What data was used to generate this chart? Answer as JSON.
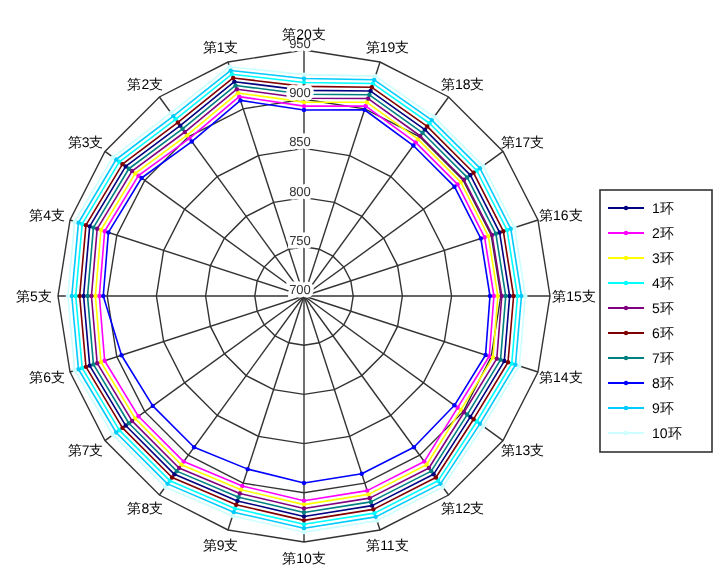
{
  "chart_data": {
    "type": "radar",
    "categories": [
      "第20支",
      "第19支",
      "第18支",
      "第17支",
      "第16支",
      "第15支",
      "第14支",
      "第13支",
      "第12支",
      "第11支",
      "第10支",
      "第9支",
      "第8支",
      "第7支",
      "第6支",
      "第5支",
      "第4支",
      "第3支",
      "第2支",
      "第1支"
    ],
    "ylim": [
      700,
      950
    ],
    "yticks": [
      700,
      750,
      800,
      850,
      900,
      950
    ],
    "grid": true,
    "legend": "right",
    "marker": "circle",
    "series": [
      {
        "name": "1环",
        "color": "#000080",
        "values": [
          909,
          919,
          909,
          909,
          909,
          909,
          914,
          909,
          924,
          924,
          924,
          919,
          924,
          924,
          929,
          924,
          929,
          924,
          914,
          929
        ]
      },
      {
        "name": "2环",
        "color": "#ff00ff",
        "values": [
          893,
          903,
          893,
          893,
          893,
          893,
          898,
          893,
          908,
          908,
          908,
          903,
          908,
          908,
          913,
          908,
          913,
          908,
          898,
          913
        ]
      },
      {
        "name": "3环",
        "color": "#ffff00",
        "values": [
          897,
          907,
          897,
          897,
          897,
          897,
          902,
          897,
          912,
          912,
          912,
          907,
          912,
          912,
          917,
          912,
          917,
          912,
          902,
          917
        ]
      },
      {
        "name": "4环",
        "color": "#00ffff",
        "values": [
          917,
          927,
          917,
          917,
          917,
          917,
          922,
          917,
          932,
          932,
          932,
          927,
          932,
          932,
          937,
          932,
          937,
          932,
          922,
          937
        ]
      },
      {
        "name": "5环",
        "color": "#800080",
        "values": [
          901,
          911,
          901,
          901,
          901,
          901,
          906,
          901,
          916,
          916,
          916,
          911,
          916,
          916,
          921,
          916,
          921,
          916,
          906,
          921
        ]
      },
      {
        "name": "6环",
        "color": "#800000",
        "values": [
          913,
          923,
          913,
          913,
          913,
          913,
          918,
          913,
          928,
          928,
          928,
          923,
          928,
          928,
          933,
          928,
          933,
          928,
          918,
          933
        ]
      },
      {
        "name": "7环",
        "color": "#008080",
        "values": [
          905,
          915,
          905,
          905,
          905,
          905,
          910,
          905,
          920,
          920,
          920,
          915,
          920,
          920,
          925,
          920,
          925,
          920,
          910,
          925
        ]
      },
      {
        "name": "8环",
        "color": "#0000ff",
        "values": [
          889,
          899,
          889,
          889,
          889,
          889,
          894,
          889,
          890,
          890,
          890,
          885,
          890,
          890,
          895,
          904,
          909,
          904,
          894,
          909
        ]
      },
      {
        "name": "9环",
        "color": "#00ccff",
        "values": [
          921,
          931,
          921,
          921,
          921,
          921,
          926,
          921,
          936,
          936,
          936,
          931,
          936,
          936,
          941,
          936,
          941,
          936,
          926,
          941
        ]
      },
      {
        "name": "10环",
        "color": "#ccffff",
        "values": [
          925,
          935,
          925,
          925,
          925,
          925,
          930,
          925,
          940,
          940,
          940,
          935,
          940,
          940,
          945,
          940,
          945,
          940,
          930,
          945
        ]
      }
    ]
  }
}
